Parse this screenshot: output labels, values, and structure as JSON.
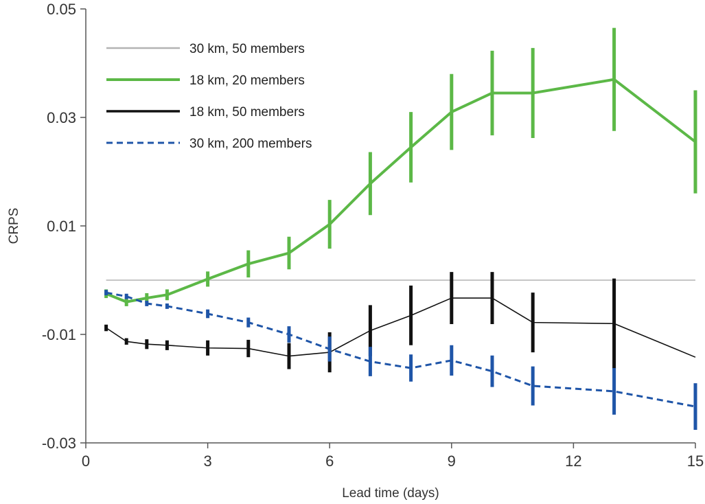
{
  "chart_data": {
    "type": "line",
    "title": "",
    "xlabel": "Lead time (days)",
    "ylabel": "CRPS",
    "xlim": [
      0,
      15
    ],
    "ylim": [
      -0.03,
      0.05
    ],
    "x_ticks": [
      0,
      3,
      6,
      9,
      12,
      15
    ],
    "x_tick_labels": [
      "0",
      "3",
      "6",
      "9",
      "12",
      "15"
    ],
    "y_ticks": [
      -0.03,
      -0.01,
      0.01,
      0.03,
      0.05
    ],
    "y_tick_labels": [
      "-0.03",
      "-0.01",
      "0.01",
      "0.03",
      "0.05"
    ],
    "grid": false,
    "legend_position": "top-left",
    "series": [
      {
        "name": "30 km, 50 members",
        "color": "#b3b3b3",
        "style": "solid",
        "stroke": "thin",
        "x": [
          0.5,
          15
        ],
        "y": [
          0.0,
          0.0
        ],
        "errors": []
      },
      {
        "name": "18 km, 20 members",
        "color": "#5cb847",
        "style": "solid",
        "stroke": "thick",
        "x": [
          0.5,
          1.0,
          1.5,
          2.0,
          3.0,
          4.0,
          5.0,
          6.0,
          7.0,
          8.0,
          9.0,
          10.0,
          11.0,
          13.0,
          15.0
        ],
        "y": [
          -0.0025,
          -0.004,
          -0.0033,
          -0.0027,
          0.0002,
          0.003,
          0.005,
          0.0103,
          0.0178,
          0.0245,
          0.031,
          0.0345,
          0.0345,
          0.037,
          0.0255
        ],
        "errors": [
          0.0008,
          0.0008,
          0.0009,
          0.001,
          0.0014,
          0.0025,
          0.003,
          0.0045,
          0.0058,
          0.0065,
          0.007,
          0.0078,
          0.0083,
          0.0095,
          0.0095
        ]
      },
      {
        "name": "18 km, 50 members",
        "color": "#111111",
        "style": "solid",
        "stroke": "thin",
        "x": [
          0.5,
          1.0,
          1.5,
          2.0,
          3.0,
          4.0,
          5.0,
          6.0,
          7.0,
          8.0,
          9.0,
          10.0,
          11.0,
          13.0,
          15.0
        ],
        "y": [
          -0.0088,
          -0.0113,
          -0.0118,
          -0.012,
          -0.0125,
          -0.0126,
          -0.014,
          -0.0133,
          -0.0093,
          -0.0065,
          -0.0033,
          -0.0033,
          -0.0078,
          -0.008,
          -0.0142
        ],
        "errors": [
          0.0006,
          0.0006,
          0.0009,
          0.0009,
          0.0014,
          0.0016,
          0.0024,
          0.0037,
          0.0047,
          0.0055,
          0.0048,
          0.0048,
          0.0055,
          0.0083,
          0.0
        ]
      },
      {
        "name": "30 km, 200 members",
        "color": "#1f55a8",
        "style": "dashed",
        "stroke": "medium",
        "x": [
          0.5,
          1.0,
          1.5,
          2.0,
          3.0,
          4.0,
          5.0,
          6.0,
          7.0,
          8.0,
          9.0,
          10.0,
          11.0,
          13.0,
          15.0
        ],
        "y": [
          -0.0023,
          -0.003,
          -0.0043,
          -0.0048,
          -0.0062,
          -0.0078,
          -0.01,
          -0.0127,
          -0.015,
          -0.0162,
          -0.0148,
          -0.0168,
          -0.0195,
          -0.0205,
          -0.0233
        ],
        "errors": [
          0.0005,
          0.0005,
          0.0005,
          0.0005,
          0.0008,
          0.0009,
          0.0015,
          0.0023,
          0.0027,
          0.0025,
          0.0028,
          0.0029,
          0.0036,
          0.0043,
          0.0043
        ]
      }
    ]
  }
}
